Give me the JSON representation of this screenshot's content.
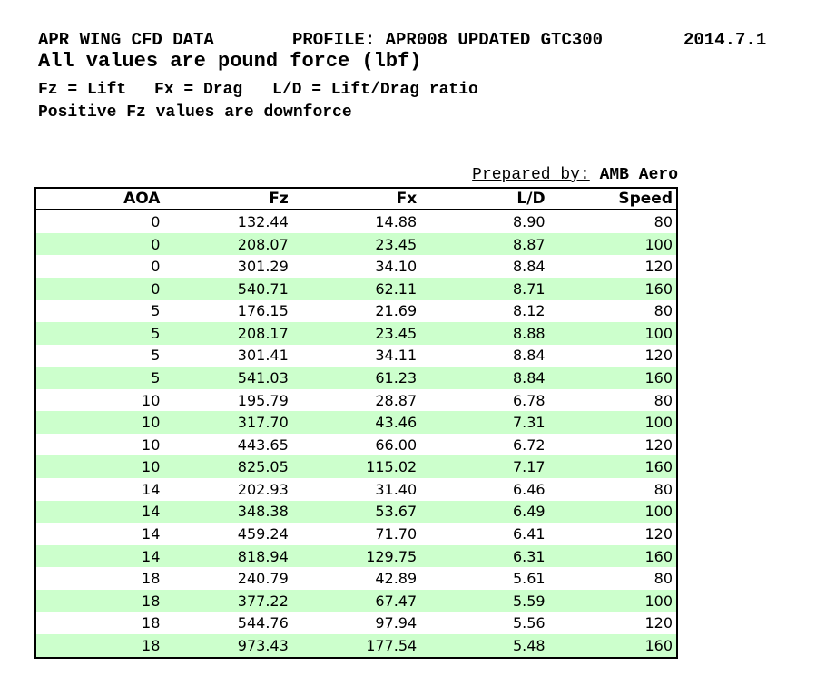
{
  "header": {
    "title": "APR WING CFD DATA",
    "profile": "PROFILE: APR008 UPDATED GTC300",
    "date": "2014.7.1",
    "units_note": "All values are pound force (lbf)",
    "definitions": [
      "Fz = Lift",
      "Fx = Drag",
      "L/D = Lift/Drag ratio"
    ],
    "sign_note": "Positive Fz values are downforce"
  },
  "prepared_by": {
    "label": "Prepared by:",
    "value": "AMB Aero"
  },
  "table": {
    "columns": [
      "AOA",
      "Fz",
      "Fx",
      "L/D",
      "Speed"
    ],
    "rows": [
      [
        "0",
        "132.44",
        "14.88",
        "8.90",
        "80"
      ],
      [
        "0",
        "208.07",
        "23.45",
        "8.87",
        "100"
      ],
      [
        "0",
        "301.29",
        "34.10",
        "8.84",
        "120"
      ],
      [
        "0",
        "540.71",
        "62.11",
        "8.71",
        "160"
      ],
      [
        "5",
        "176.15",
        "21.69",
        "8.12",
        "80"
      ],
      [
        "5",
        "208.17",
        "23.45",
        "8.88",
        "100"
      ],
      [
        "5",
        "301.41",
        "34.11",
        "8.84",
        "120"
      ],
      [
        "5",
        "541.03",
        "61.23",
        "8.84",
        "160"
      ],
      [
        "10",
        "195.79",
        "28.87",
        "6.78",
        "80"
      ],
      [
        "10",
        "317.70",
        "43.46",
        "7.31",
        "100"
      ],
      [
        "10",
        "443.65",
        "66.00",
        "6.72",
        "120"
      ],
      [
        "10",
        "825.05",
        "115.02",
        "7.17",
        "160"
      ],
      [
        "14",
        "202.93",
        "31.40",
        "6.46",
        "80"
      ],
      [
        "14",
        "348.38",
        "53.67",
        "6.49",
        "100"
      ],
      [
        "14",
        "459.24",
        "71.70",
        "6.41",
        "120"
      ],
      [
        "14",
        "818.94",
        "129.75",
        "6.31",
        "160"
      ],
      [
        "18",
        "240.79",
        "42.89",
        "5.61",
        "80"
      ],
      [
        "18",
        "377.22",
        "67.47",
        "5.59",
        "100"
      ],
      [
        "18",
        "544.76",
        "97.94",
        "5.56",
        "120"
      ],
      [
        "18",
        "973.43",
        "177.54",
        "5.48",
        "160"
      ]
    ]
  },
  "colors": {
    "stripe_green": "#ccffcc",
    "border": "#000000",
    "text": "#000000",
    "background": "#ffffff"
  }
}
